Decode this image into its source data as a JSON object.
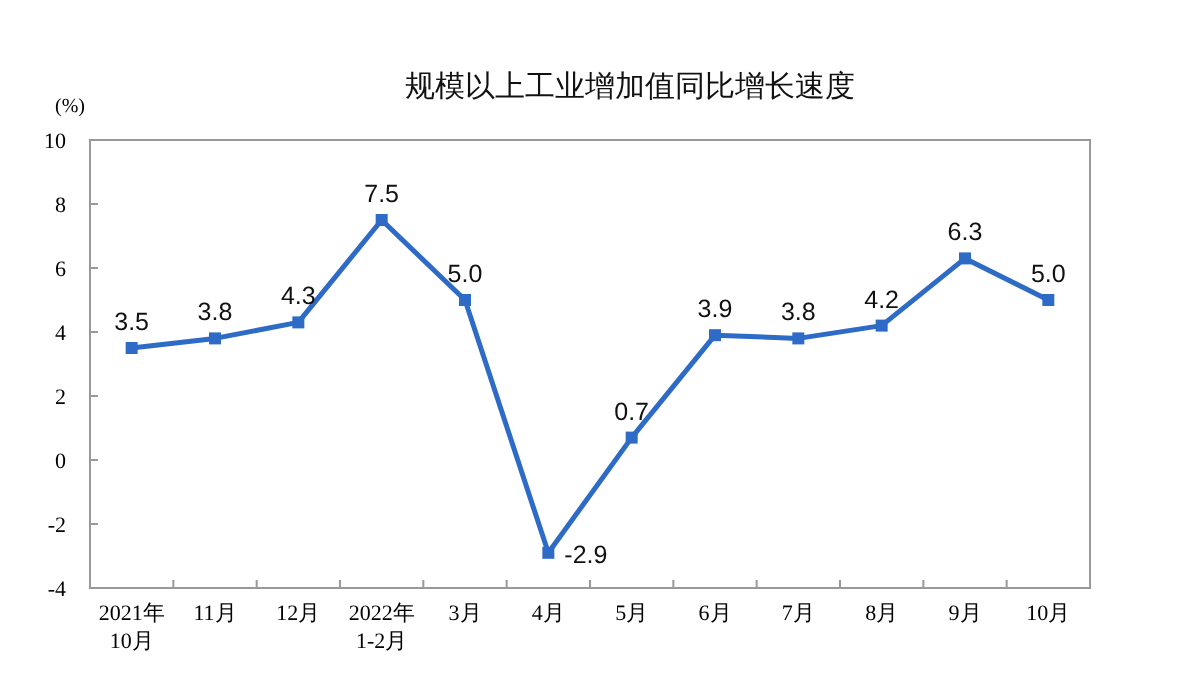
{
  "chart_data": {
    "type": "line",
    "title": "规模以上工业增加值同比增长速度",
    "ylabel": "(%)",
    "categories": [
      "2021年\n10月",
      "11月",
      "12月",
      "2022年\n1-2月",
      "3月",
      "4月",
      "5月",
      "6月",
      "7月",
      "8月",
      "9月",
      "10月"
    ],
    "series": [
      {
        "color": "#2e6bc6",
        "values": [
          3.5,
          3.8,
          4.3,
          7.5,
          5.0,
          -2.9,
          0.7,
          3.9,
          3.8,
          4.2,
          6.3,
          5.0
        ],
        "value_labels": [
          "3.5",
          "3.8",
          "4.3",
          "7.5",
          "5.0",
          "-2.9",
          "0.7",
          "3.9",
          "3.8",
          "4.2",
          "6.3",
          "5.0"
        ]
      }
    ],
    "ylim": [
      -4,
      10
    ],
    "yticks": [
      -4,
      -2,
      0,
      2,
      4,
      6,
      8,
      10
    ],
    "grid": false,
    "marker": "square",
    "line_style": "solid"
  }
}
